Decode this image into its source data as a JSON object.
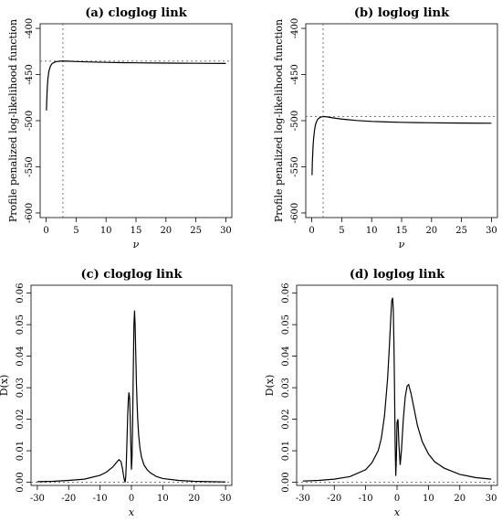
{
  "chart_data": [
    {
      "id": "a",
      "type": "line",
      "title": "(a) cloglog link",
      "xlabel": "ν",
      "ylabel": "Profile penalized log-likelihood function",
      "xlim": [
        -1,
        31
      ],
      "ylim": [
        -605,
        -395
      ],
      "xticks": [
        0,
        5,
        10,
        15,
        20,
        25,
        30
      ],
      "yticks": [
        -600,
        -550,
        -500,
        -450,
        -400
      ],
      "ytick_labels": [
        "-600",
        "-550",
        "-500",
        "-450",
        "-400"
      ],
      "ytick_rotate": true,
      "series": [
        {
          "x": [
            0.05,
            0.1,
            0.2,
            0.3,
            0.45,
            0.6,
            0.8,
            1.0,
            1.3,
            1.6,
            2.0,
            2.4,
            2.8,
            3.5,
            5,
            7.5,
            10,
            12.5,
            15,
            17.5,
            20,
            22.5,
            25,
            27.5,
            30
          ],
          "y": [
            -489,
            -478,
            -463,
            -454,
            -447,
            -443,
            -440,
            -438,
            -437,
            -436.2,
            -435.7,
            -435.5,
            -435.4,
            -435.5,
            -435.9,
            -436.4,
            -436.8,
            -437.1,
            -437.3,
            -437.5,
            -437.6,
            -437.7,
            -437.8,
            -437.9,
            -438
          ]
        }
      ],
      "vline": 2.8,
      "hline": -435.4
    },
    {
      "id": "b",
      "type": "line",
      "title": "(b) loglog link",
      "xlabel": "ν",
      "ylabel": "Profile penalized log-likelihood function",
      "xlim": [
        -1,
        31
      ],
      "ylim": [
        -605,
        -395
      ],
      "xticks": [
        0,
        5,
        10,
        15,
        20,
        25,
        30
      ],
      "yticks": [
        -600,
        -550,
        -500,
        -450,
        -400
      ],
      "ytick_labels": [
        "-600",
        "-550",
        "-500",
        "-450",
        "-400"
      ],
      "ytick_rotate": true,
      "series": [
        {
          "x": [
            0.05,
            0.1,
            0.2,
            0.3,
            0.45,
            0.6,
            0.8,
            1.0,
            1.3,
            1.6,
            2.0,
            2.5,
            3,
            4,
            5,
            7.5,
            10,
            12.5,
            15,
            17.5,
            20,
            22.5,
            25,
            27.5,
            30
          ],
          "y": [
            -559,
            -545,
            -530,
            -520,
            -511,
            -505,
            -501,
            -498.5,
            -496.8,
            -496,
            -495.6,
            -495.8,
            -496.4,
            -497.4,
            -498.3,
            -499.8,
            -500.8,
            -501.4,
            -501.8,
            -502.1,
            -502.3,
            -502.5,
            -502.6,
            -502.7,
            -502.8
          ]
        }
      ],
      "vline": 1.9,
      "hline": -495.6
    },
    {
      "id": "c",
      "type": "line",
      "title": "(c) cloglog link",
      "xlabel": "x",
      "ylabel": "D(x)",
      "xlim": [
        -32,
        32
      ],
      "ylim": [
        -0.001,
        0.0625
      ],
      "xticks": [
        -30,
        -20,
        -10,
        0,
        10,
        20,
        30
      ],
      "yticks": [
        0,
        0.01,
        0.02,
        0.03,
        0.04,
        0.05,
        0.06
      ],
      "ytick_labels": [
        "0.00",
        "0.01",
        "0.02",
        "0.03",
        "0.04",
        "0.05",
        "0.06"
      ],
      "ytick_rotate": true,
      "series": [
        {
          "x": [
            -30,
            -25,
            -20,
            -15,
            -10,
            -8,
            -6,
            -5,
            -4,
            -3.3,
            -2.8,
            -2.5,
            -2.2,
            -2.0,
            -1.8,
            -1.6,
            -1.4,
            -1.2,
            -1.0,
            -0.8,
            -0.6,
            -0.4,
            -0.2,
            0.0,
            0.2,
            0.4,
            0.6,
            0.8,
            1.0,
            1.2,
            1.4,
            1.6,
            1.8,
            2.0,
            2.3,
            2.7,
            3.2,
            4,
            5,
            6,
            8,
            10,
            15,
            20,
            25,
            30
          ],
          "y": [
            0.0002,
            0.0003,
            0.0006,
            0.001,
            0.0022,
            0.0032,
            0.0048,
            0.006,
            0.0072,
            0.0065,
            0.004,
            0.002,
            0.0005,
            0.0,
            0.002,
            0.007,
            0.014,
            0.021,
            0.026,
            0.0285,
            0.027,
            0.021,
            0.012,
            0.004,
            0.008,
            0.02,
            0.036,
            0.05,
            0.0545,
            0.049,
            0.04,
            0.031,
            0.025,
            0.02,
            0.015,
            0.011,
            0.008,
            0.0055,
            0.004,
            0.003,
            0.0018,
            0.0012,
            0.0006,
            0.0003,
            0.0002,
            0.0001
          ]
        }
      ],
      "hline": 0
    },
    {
      "id": "d",
      "type": "line",
      "title": "(d) loglog link",
      "xlabel": "x",
      "ylabel": "D(x)",
      "xlim": [
        -32,
        32
      ],
      "ylim": [
        -0.001,
        0.0625
      ],
      "xticks": [
        -30,
        -20,
        -10,
        0,
        10,
        20,
        30
      ],
      "yticks": [
        0,
        0.01,
        0.02,
        0.03,
        0.04,
        0.05,
        0.06
      ],
      "ytick_labels": [
        "0.00",
        "0.01",
        "0.02",
        "0.03",
        "0.04",
        "0.05",
        "0.06"
      ],
      "ytick_rotate": true,
      "series": [
        {
          "x": [
            -30,
            -25,
            -20,
            -15,
            -10,
            -8,
            -6,
            -5,
            -4,
            -3,
            -2.5,
            -2,
            -1.7,
            -1.4,
            -1.2,
            -1.0,
            -0.8,
            -0.6,
            -0.4,
            -0.2,
            0.0,
            0.3,
            0.6,
            1.0,
            1.4,
            2.0,
            2.6,
            3.2,
            3.7,
            4.5,
            5.5,
            6.5,
            8,
            10,
            12,
            15,
            20,
            25,
            30
          ],
          "y": [
            0.0004,
            0.0006,
            0.001,
            0.0018,
            0.004,
            0.0062,
            0.01,
            0.014,
            0.021,
            0.033,
            0.042,
            0.052,
            0.0575,
            0.0585,
            0.055,
            0.045,
            0.03,
            0.012,
            0.002,
            0.008,
            0.019,
            0.02,
            0.012,
            0.0055,
            0.01,
            0.02,
            0.027,
            0.0305,
            0.031,
            0.028,
            0.023,
            0.018,
            0.013,
            0.009,
            0.0065,
            0.0045,
            0.0025,
            0.0015,
            0.001
          ]
        }
      ],
      "hline": 0
    }
  ]
}
